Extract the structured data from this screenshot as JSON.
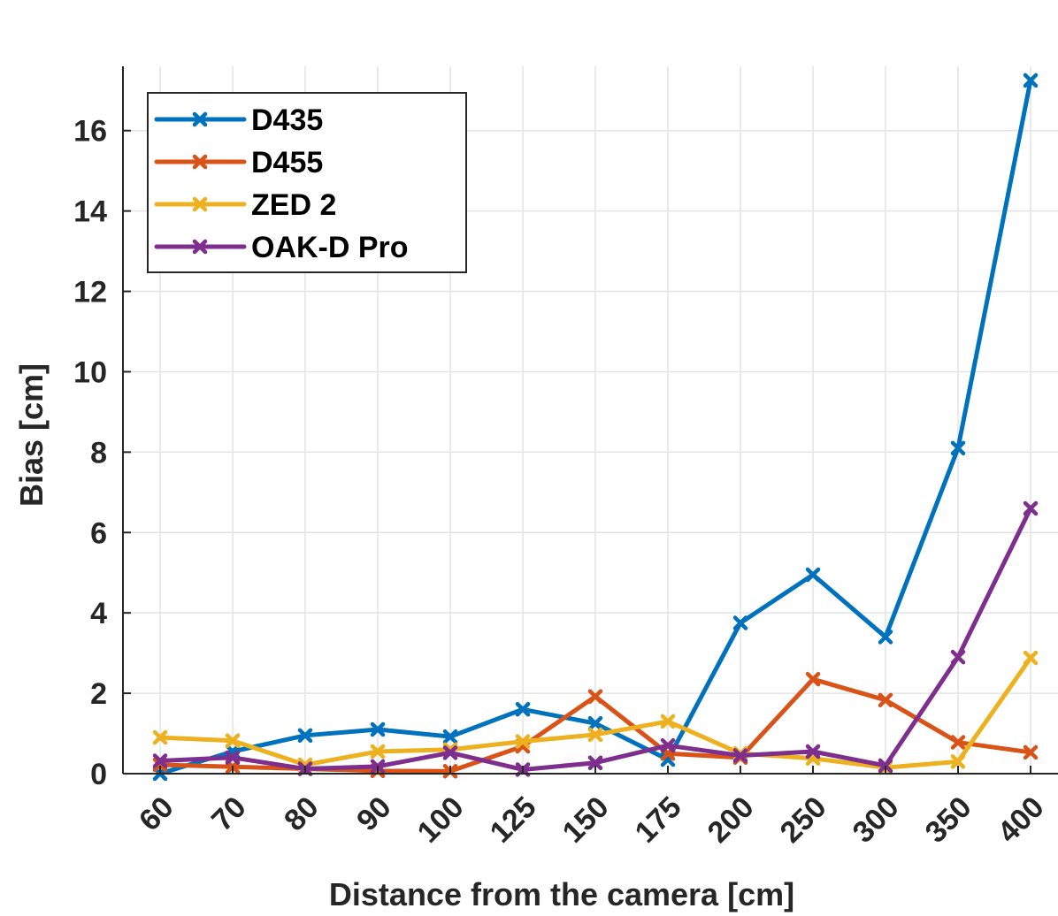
{
  "chart_data": {
    "type": "line",
    "title": "",
    "xlabel": "Distance from the camera [cm]",
    "ylabel": "Bias [cm]",
    "categories": [
      "60",
      "70",
      "80",
      "90",
      "100",
      "125",
      "150",
      "175",
      "200",
      "250",
      "300",
      "350",
      "400"
    ],
    "ylim": [
      0,
      17.6
    ],
    "yticks": [
      0,
      2,
      4,
      6,
      8,
      10,
      12,
      14,
      16
    ],
    "grid": true,
    "legend_position": "top-left",
    "series": [
      {
        "name": "D435",
        "color": "#0072BD",
        "values": [
          0.0,
          0.55,
          0.95,
          1.1,
          0.92,
          1.6,
          1.25,
          0.35,
          3.75,
          4.95,
          3.4,
          8.1,
          17.25
        ]
      },
      {
        "name": "D455",
        "color": "#D95319",
        "values": [
          0.22,
          0.17,
          0.12,
          0.07,
          0.06,
          0.68,
          1.92,
          0.5,
          0.4,
          2.35,
          1.83,
          0.78,
          0.53
        ]
      },
      {
        "name": "ZED 2",
        "color": "#EDB120",
        "values": [
          0.9,
          0.82,
          0.22,
          0.55,
          0.6,
          0.8,
          0.97,
          1.3,
          0.5,
          0.38,
          0.15,
          0.3,
          2.88
        ]
      },
      {
        "name": "OAK-D Pro",
        "color": "#7E2F8E",
        "values": [
          0.32,
          0.4,
          0.12,
          0.18,
          0.52,
          0.1,
          0.27,
          0.7,
          0.45,
          0.55,
          0.2,
          2.9,
          6.6
        ]
      }
    ]
  }
}
